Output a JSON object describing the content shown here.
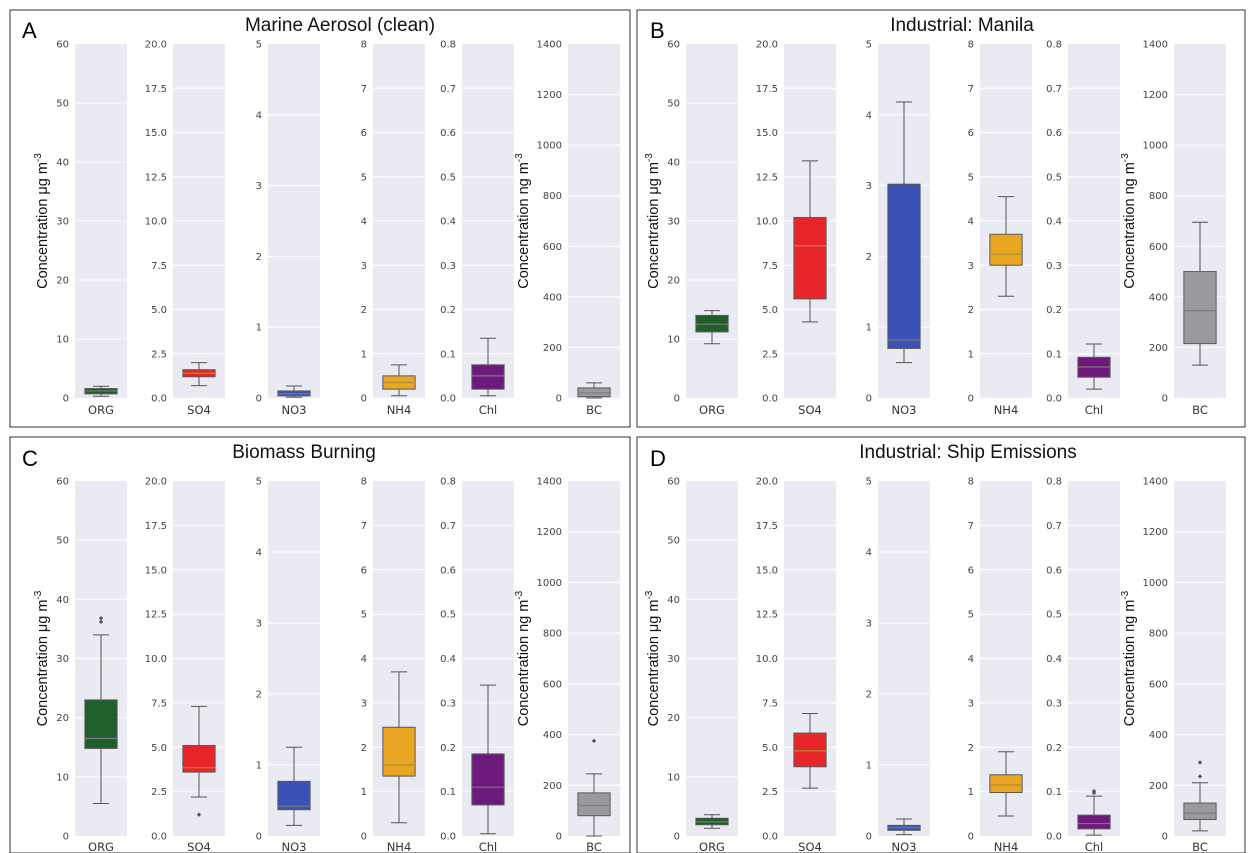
{
  "colors": {
    "ORG": "#1f5f2a",
    "SO4": "#e8262a",
    "NO3": "#3a51b5",
    "NH4": "#e8a623",
    "Chl": "#6e1a7c",
    "BC": "#9a9a9e"
  },
  "chart_data": [
    {
      "type": "box",
      "letter": "A",
      "title": "Marine Aerosol (clean)",
      "ylabel_ug": "Concentration μg m",
      "ylabel_ng": "Concentration ng m",
      "ylabel_exp": "-3",
      "subplots": [
        {
          "category": "ORG",
          "ylim": [
            0,
            60
          ],
          "ticks": [
            "0",
            "10",
            "20",
            "30",
            "40",
            "50",
            "60"
          ],
          "box": {
            "min": 0.3,
            "q1": 0.7,
            "median": 1.2,
            "q3": 1.6,
            "max": 2.0
          },
          "outliers": []
        },
        {
          "category": "SO4",
          "ylim": [
            0,
            20
          ],
          "ticks": [
            "0.0",
            "2.5",
            "5.0",
            "7.5",
            "10.0",
            "12.5",
            "15.0",
            "17.5",
            "20.0"
          ],
          "box": {
            "min": 0.7,
            "q1": 1.2,
            "median": 1.4,
            "q3": 1.6,
            "max": 2.0
          },
          "outliers": []
        },
        {
          "category": "NO3",
          "ylim": [
            0,
            5
          ],
          "ticks": [
            "0",
            "1",
            "2",
            "3",
            "4",
            "5"
          ],
          "box": {
            "min": 0.01,
            "q1": 0.03,
            "median": 0.06,
            "q3": 0.1,
            "max": 0.17
          },
          "outliers": []
        },
        {
          "category": "NH4",
          "ylim": [
            0,
            8
          ],
          "ticks": [
            "0",
            "1",
            "2",
            "3",
            "4",
            "5",
            "6",
            "7",
            "8"
          ],
          "box": {
            "min": 0.05,
            "q1": 0.2,
            "median": 0.35,
            "q3": 0.5,
            "max": 0.75
          },
          "outliers": []
        },
        {
          "category": "Chl",
          "ylim": [
            0,
            0.8
          ],
          "ticks": [
            "0.0",
            "0.1",
            "0.2",
            "0.3",
            "0.4",
            "0.5",
            "0.6",
            "0.7",
            "0.8"
          ],
          "box": {
            "min": 0.005,
            "q1": 0.02,
            "median": 0.05,
            "q3": 0.075,
            "max": 0.135
          },
          "outliers": []
        },
        {
          "category": "BC",
          "ylim": [
            0,
            1400
          ],
          "ticks": [
            "0",
            "200",
            "400",
            "600",
            "800",
            "1000",
            "1200",
            "1400"
          ],
          "box": {
            "min": 0,
            "q1": 5,
            "median": 20,
            "q3": 40,
            "max": 60
          },
          "outliers": []
        }
      ]
    },
    {
      "type": "box",
      "letter": "B",
      "title": "Industrial: Manila",
      "ylabel_ug": "Concentration μg m",
      "ylabel_ng": "Concentration ng m",
      "ylabel_exp": "-3",
      "subplots": [
        {
          "category": "ORG",
          "ylim": [
            0,
            60
          ],
          "ticks": [
            "0",
            "10",
            "20",
            "30",
            "40",
            "50",
            "60"
          ],
          "box": {
            "min": 9.2,
            "q1": 11.2,
            "median": 12.5,
            "q3": 14.0,
            "max": 14.8
          },
          "outliers": []
        },
        {
          "category": "SO4",
          "ylim": [
            0,
            20
          ],
          "ticks": [
            "0.0",
            "2.5",
            "5.0",
            "7.5",
            "10.0",
            "12.5",
            "15.0",
            "17.5",
            "20.0"
          ],
          "box": {
            "min": 4.3,
            "q1": 5.6,
            "median": 8.6,
            "q3": 10.2,
            "max": 13.4
          },
          "outliers": []
        },
        {
          "category": "NO3",
          "ylim": [
            0,
            5
          ],
          "ticks": [
            "0",
            "1",
            "2",
            "3",
            "4",
            "5"
          ],
          "box": {
            "min": 0.5,
            "q1": 0.7,
            "median": 0.82,
            "q3": 3.02,
            "max": 4.18
          },
          "outliers": []
        },
        {
          "category": "NH4",
          "ylim": [
            0,
            8
          ],
          "ticks": [
            "0",
            "1",
            "2",
            "3",
            "4",
            "5",
            "6",
            "7",
            "8"
          ],
          "box": {
            "min": 2.3,
            "q1": 3.0,
            "median": 3.25,
            "q3": 3.7,
            "max": 4.55
          },
          "outliers": []
        },
        {
          "category": "Chl",
          "ylim": [
            0,
            0.8
          ],
          "ticks": [
            "0.0",
            "0.1",
            "0.2",
            "0.3",
            "0.4",
            "0.5",
            "0.6",
            "0.7",
            "0.8"
          ],
          "box": {
            "min": 0.02,
            "q1": 0.047,
            "median": 0.07,
            "q3": 0.092,
            "max": 0.122
          },
          "outliers": []
        },
        {
          "category": "BC",
          "ylim": [
            0,
            1400
          ],
          "ticks": [
            "0",
            "200",
            "400",
            "600",
            "800",
            "1000",
            "1200",
            "1400"
          ],
          "box": {
            "min": 130,
            "q1": 215,
            "median": 345,
            "q3": 500,
            "max": 695
          },
          "outliers": []
        }
      ]
    },
    {
      "type": "box",
      "letter": "C",
      "title": "Biomass Burning",
      "ylabel_ug": "Concentration μg m",
      "ylabel_ng": "Concentration ng m",
      "ylabel_exp": "-3",
      "subplots": [
        {
          "category": "ORG",
          "ylim": [
            0,
            60
          ],
          "ticks": [
            "0",
            "10",
            "20",
            "30",
            "40",
            "50",
            "60"
          ],
          "box": {
            "min": 5.5,
            "q1": 14.8,
            "median": 16.5,
            "q3": 23.0,
            "max": 34.0
          },
          "outliers": [
            36.2,
            36.8
          ]
        },
        {
          "category": "SO4",
          "ylim": [
            0,
            20
          ],
          "ticks": [
            "0.0",
            "2.5",
            "5.0",
            "7.5",
            "10.0",
            "12.5",
            "15.0",
            "17.5",
            "20.0"
          ],
          "box": {
            "min": 2.2,
            "q1": 3.6,
            "median": 3.85,
            "q3": 5.1,
            "max": 7.3
          },
          "outliers": [
            1.2
          ]
        },
        {
          "category": "NO3",
          "ylim": [
            0,
            5
          ],
          "ticks": [
            "0",
            "1",
            "2",
            "3",
            "4",
            "5"
          ],
          "box": {
            "min": 0.15,
            "q1": 0.37,
            "median": 0.42,
            "q3": 0.77,
            "max": 1.25
          },
          "outliers": []
        },
        {
          "category": "NH4",
          "ylim": [
            0,
            8
          ],
          "ticks": [
            "0",
            "1",
            "2",
            "3",
            "4",
            "5",
            "6",
            "7",
            "8"
          ],
          "box": {
            "min": 0.3,
            "q1": 1.35,
            "median": 1.6,
            "q3": 2.45,
            "max": 3.7
          },
          "outliers": []
        },
        {
          "category": "Chl",
          "ylim": [
            0,
            0.8
          ],
          "ticks": [
            "0.0",
            "0.1",
            "0.2",
            "0.3",
            "0.4",
            "0.5",
            "0.6",
            "0.7",
            "0.8"
          ],
          "box": {
            "min": 0.005,
            "q1": 0.07,
            "median": 0.11,
            "q3": 0.185,
            "max": 0.34
          },
          "outliers": []
        },
        {
          "category": "BC",
          "ylim": [
            0,
            1400
          ],
          "ticks": [
            "0",
            "200",
            "400",
            "600",
            "800",
            "1000",
            "1200",
            "1400"
          ],
          "box": {
            "min": 0,
            "q1": 80,
            "median": 120,
            "q3": 170,
            "max": 245
          },
          "outliers": [
            375
          ]
        }
      ]
    },
    {
      "type": "box",
      "letter": "D",
      "title": "Industrial: Ship Emissions",
      "ylabel_ug": "Concentration μg m",
      "ylabel_ng": "Concentration ng m",
      "ylabel_exp": "-3",
      "subplots": [
        {
          "category": "ORG",
          "ylim": [
            0,
            60
          ],
          "ticks": [
            "0",
            "10",
            "20",
            "30",
            "40",
            "50",
            "60"
          ],
          "box": {
            "min": 1.3,
            "q1": 1.9,
            "median": 2.4,
            "q3": 3.0,
            "max": 3.6
          },
          "outliers": []
        },
        {
          "category": "SO4",
          "ylim": [
            0,
            20
          ],
          "ticks": [
            "0.0",
            "2.5",
            "5.0",
            "7.5",
            "10.0",
            "12.5",
            "15.0",
            "17.5",
            "20.0"
          ],
          "box": {
            "min": 2.7,
            "q1": 3.9,
            "median": 4.8,
            "q3": 5.8,
            "max": 6.9
          },
          "outliers": []
        },
        {
          "category": "NO3",
          "ylim": [
            0,
            5
          ],
          "ticks": [
            "0",
            "1",
            "2",
            "3",
            "4",
            "5"
          ],
          "box": {
            "min": 0.02,
            "q1": 0.08,
            "median": 0.12,
            "q3": 0.15,
            "max": 0.24
          },
          "outliers": []
        },
        {
          "category": "NH4",
          "ylim": [
            0,
            8
          ],
          "ticks": [
            "0",
            "1",
            "2",
            "3",
            "4",
            "5",
            "6",
            "7",
            "8"
          ],
          "box": {
            "min": 0.45,
            "q1": 0.98,
            "median": 1.15,
            "q3": 1.38,
            "max": 1.9
          },
          "outliers": []
        },
        {
          "category": "Chl",
          "ylim": [
            0,
            0.8
          ],
          "ticks": [
            "0.0",
            "0.1",
            "0.2",
            "0.3",
            "0.4",
            "0.5",
            "0.6",
            "0.7",
            "0.8"
          ],
          "box": {
            "min": 0.002,
            "q1": 0.016,
            "median": 0.028,
            "q3": 0.047,
            "max": 0.09
          },
          "outliers": [
            0.097,
            0.101
          ]
        },
        {
          "category": "BC",
          "ylim": [
            0,
            1400
          ],
          "ticks": [
            "0",
            "200",
            "400",
            "600",
            "800",
            "1000",
            "1200",
            "1400"
          ],
          "box": {
            "min": 20,
            "q1": 65,
            "median": 90,
            "q3": 130,
            "max": 210
          },
          "outliers": [
            235,
            290
          ]
        }
      ]
    }
  ]
}
